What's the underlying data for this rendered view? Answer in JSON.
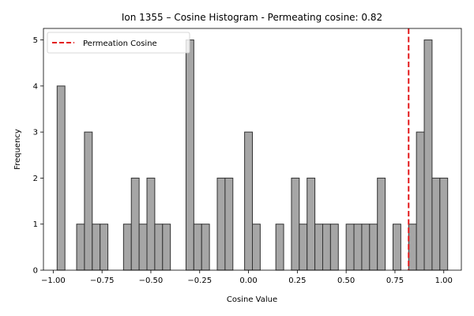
{
  "chart_data": {
    "type": "bar",
    "title": "Ion 1355 – Cosine Histogram - Permeating cosine: 0.82",
    "xlabel": "Cosine Value",
    "ylabel": "Frequency",
    "xlim": [
      -1.05,
      1.09
    ],
    "ylim": [
      0,
      5.25
    ],
    "xticks": [
      -1.0,
      -0.75,
      -0.5,
      -0.25,
      0.0,
      0.25,
      0.5,
      0.75,
      1.0
    ],
    "xtick_labels": [
      "−1.00",
      "−0.75",
      "−0.50",
      "−0.25",
      "0.00",
      "0.25",
      "0.50",
      "0.75",
      "1.00"
    ],
    "yticks": [
      0,
      1,
      2,
      3,
      4,
      5
    ],
    "ytick_labels": [
      "0",
      "1",
      "2",
      "3",
      "4",
      "5"
    ],
    "bin_width": 0.04,
    "bins": [
      {
        "x": -0.96,
        "count": 4
      },
      {
        "x": -0.86,
        "count": 1
      },
      {
        "x": -0.82,
        "count": 3
      },
      {
        "x": -0.78,
        "count": 1
      },
      {
        "x": -0.74,
        "count": 1
      },
      {
        "x": -0.62,
        "count": 1
      },
      {
        "x": -0.58,
        "count": 2
      },
      {
        "x": -0.54,
        "count": 1
      },
      {
        "x": -0.5,
        "count": 2
      },
      {
        "x": -0.46,
        "count": 1
      },
      {
        "x": -0.42,
        "count": 1
      },
      {
        "x": -0.3,
        "count": 5
      },
      {
        "x": -0.26,
        "count": 1
      },
      {
        "x": -0.22,
        "count": 1
      },
      {
        "x": -0.14,
        "count": 2
      },
      {
        "x": -0.1,
        "count": 2
      },
      {
        "x": 0.0,
        "count": 3
      },
      {
        "x": 0.04,
        "count": 1
      },
      {
        "x": 0.16,
        "count": 1
      },
      {
        "x": 0.24,
        "count": 2
      },
      {
        "x": 0.28,
        "count": 1
      },
      {
        "x": 0.32,
        "count": 2
      },
      {
        "x": 0.36,
        "count": 1
      },
      {
        "x": 0.4,
        "count": 1
      },
      {
        "x": 0.44,
        "count": 1
      },
      {
        "x": 0.52,
        "count": 1
      },
      {
        "x": 0.56,
        "count": 1
      },
      {
        "x": 0.6,
        "count": 1
      },
      {
        "x": 0.64,
        "count": 1
      },
      {
        "x": 0.68,
        "count": 2
      },
      {
        "x": 0.76,
        "count": 1
      },
      {
        "x": 0.84,
        "count": 1
      },
      {
        "x": 0.88,
        "count": 3
      },
      {
        "x": 0.92,
        "count": 5
      },
      {
        "x": 0.96,
        "count": 2
      },
      {
        "x": 1.0,
        "count": 2
      }
    ],
    "reference_line": {
      "x": 0.82,
      "label": "Permeation Cosine",
      "color": "#e31a1c",
      "style": "dashed"
    },
    "bar_color": "#a6a6a6",
    "bar_edge_color": "#333333",
    "legend": {
      "placement": "top-left",
      "entries": [
        "Permeation Cosine"
      ]
    },
    "grid": false
  }
}
